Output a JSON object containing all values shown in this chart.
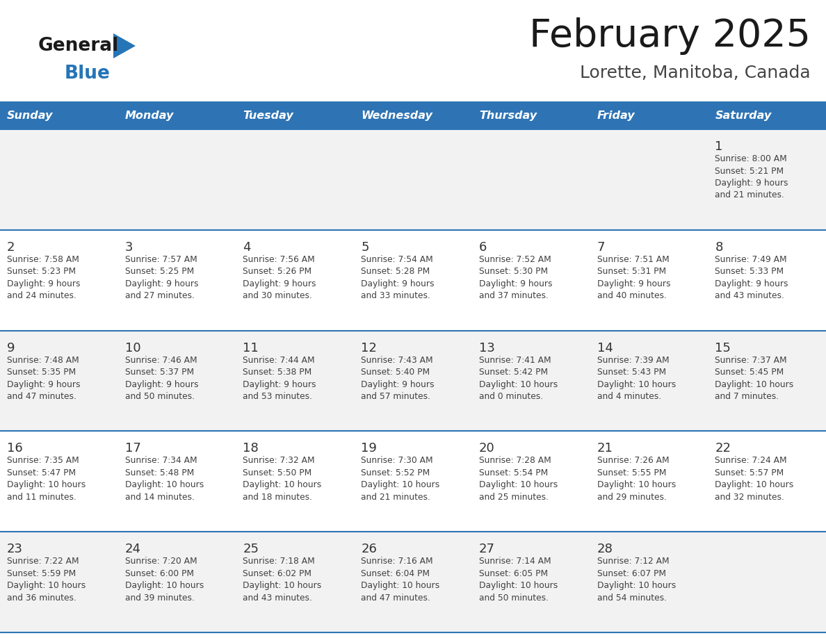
{
  "title": "February 2025",
  "subtitle": "Lorette, Manitoba, Canada",
  "days_of_week": [
    "Sunday",
    "Monday",
    "Tuesday",
    "Wednesday",
    "Thursday",
    "Friday",
    "Saturday"
  ],
  "header_bg": "#2E74B5",
  "header_text": "#FFFFFF",
  "cell_bg_white": "#FFFFFF",
  "cell_bg_gray": "#F2F2F2",
  "separator_color": "#2E74B5",
  "text_color": "#404040",
  "day_num_color": "#333333",
  "title_color": "#1a1a1a",
  "subtitle_color": "#444444",
  "logo_general_color": "#1a1a1a",
  "logo_blue_color": "#2575B7",
  "weeks": [
    [
      {
        "day": null,
        "sunrise": null,
        "sunset": null,
        "daylight": null
      },
      {
        "day": null,
        "sunrise": null,
        "sunset": null,
        "daylight": null
      },
      {
        "day": null,
        "sunrise": null,
        "sunset": null,
        "daylight": null
      },
      {
        "day": null,
        "sunrise": null,
        "sunset": null,
        "daylight": null
      },
      {
        "day": null,
        "sunrise": null,
        "sunset": null,
        "daylight": null
      },
      {
        "day": null,
        "sunrise": null,
        "sunset": null,
        "daylight": null
      },
      {
        "day": 1,
        "sunrise": "8:00 AM",
        "sunset": "5:21 PM",
        "daylight": "9 hours and 21 minutes."
      }
    ],
    [
      {
        "day": 2,
        "sunrise": "7:58 AM",
        "sunset": "5:23 PM",
        "daylight": "9 hours and 24 minutes."
      },
      {
        "day": 3,
        "sunrise": "7:57 AM",
        "sunset": "5:25 PM",
        "daylight": "9 hours and 27 minutes."
      },
      {
        "day": 4,
        "sunrise": "7:56 AM",
        "sunset": "5:26 PM",
        "daylight": "9 hours and 30 minutes."
      },
      {
        "day": 5,
        "sunrise": "7:54 AM",
        "sunset": "5:28 PM",
        "daylight": "9 hours and 33 minutes."
      },
      {
        "day": 6,
        "sunrise": "7:52 AM",
        "sunset": "5:30 PM",
        "daylight": "9 hours and 37 minutes."
      },
      {
        "day": 7,
        "sunrise": "7:51 AM",
        "sunset": "5:31 PM",
        "daylight": "9 hours and 40 minutes."
      },
      {
        "day": 8,
        "sunrise": "7:49 AM",
        "sunset": "5:33 PM",
        "daylight": "9 hours and 43 minutes."
      }
    ],
    [
      {
        "day": 9,
        "sunrise": "7:48 AM",
        "sunset": "5:35 PM",
        "daylight": "9 hours and 47 minutes."
      },
      {
        "day": 10,
        "sunrise": "7:46 AM",
        "sunset": "5:37 PM",
        "daylight": "9 hours and 50 minutes."
      },
      {
        "day": 11,
        "sunrise": "7:44 AM",
        "sunset": "5:38 PM",
        "daylight": "9 hours and 53 minutes."
      },
      {
        "day": 12,
        "sunrise": "7:43 AM",
        "sunset": "5:40 PM",
        "daylight": "9 hours and 57 minutes."
      },
      {
        "day": 13,
        "sunrise": "7:41 AM",
        "sunset": "5:42 PM",
        "daylight": "10 hours and 0 minutes."
      },
      {
        "day": 14,
        "sunrise": "7:39 AM",
        "sunset": "5:43 PM",
        "daylight": "10 hours and 4 minutes."
      },
      {
        "day": 15,
        "sunrise": "7:37 AM",
        "sunset": "5:45 PM",
        "daylight": "10 hours and 7 minutes."
      }
    ],
    [
      {
        "day": 16,
        "sunrise": "7:35 AM",
        "sunset": "5:47 PM",
        "daylight": "10 hours and 11 minutes."
      },
      {
        "day": 17,
        "sunrise": "7:34 AM",
        "sunset": "5:48 PM",
        "daylight": "10 hours and 14 minutes."
      },
      {
        "day": 18,
        "sunrise": "7:32 AM",
        "sunset": "5:50 PM",
        "daylight": "10 hours and 18 minutes."
      },
      {
        "day": 19,
        "sunrise": "7:30 AM",
        "sunset": "5:52 PM",
        "daylight": "10 hours and 21 minutes."
      },
      {
        "day": 20,
        "sunrise": "7:28 AM",
        "sunset": "5:54 PM",
        "daylight": "10 hours and 25 minutes."
      },
      {
        "day": 21,
        "sunrise": "7:26 AM",
        "sunset": "5:55 PM",
        "daylight": "10 hours and 29 minutes."
      },
      {
        "day": 22,
        "sunrise": "7:24 AM",
        "sunset": "5:57 PM",
        "daylight": "10 hours and 32 minutes."
      }
    ],
    [
      {
        "day": 23,
        "sunrise": "7:22 AM",
        "sunset": "5:59 PM",
        "daylight": "10 hours and 36 minutes."
      },
      {
        "day": 24,
        "sunrise": "7:20 AM",
        "sunset": "6:00 PM",
        "daylight": "10 hours and 39 minutes."
      },
      {
        "day": 25,
        "sunrise": "7:18 AM",
        "sunset": "6:02 PM",
        "daylight": "10 hours and 43 minutes."
      },
      {
        "day": 26,
        "sunrise": "7:16 AM",
        "sunset": "6:04 PM",
        "daylight": "10 hours and 47 minutes."
      },
      {
        "day": 27,
        "sunrise": "7:14 AM",
        "sunset": "6:05 PM",
        "daylight": "10 hours and 50 minutes."
      },
      {
        "day": 28,
        "sunrise": "7:12 AM",
        "sunset": "6:07 PM",
        "daylight": "10 hours and 54 minutes."
      },
      {
        "day": null,
        "sunrise": null,
        "sunset": null,
        "daylight": null
      }
    ]
  ]
}
